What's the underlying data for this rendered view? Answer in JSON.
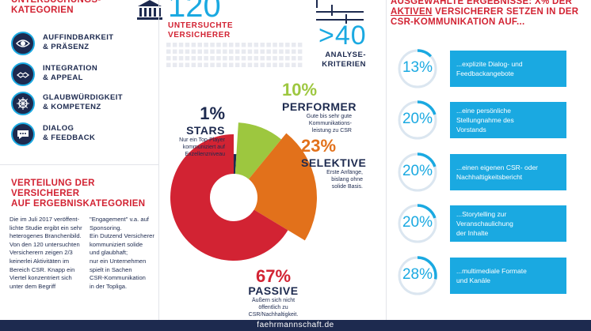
{
  "categories_title": "UNTERSUCHUNGS-\nKATEGORIEN",
  "categories": [
    {
      "icon": "eye-icon",
      "line1": "AUFFINDBARKEIT",
      "line2": "& PRÄSENZ"
    },
    {
      "icon": "handshake-icon",
      "line1": "INTEGRATION",
      "line2": "& APPEAL"
    },
    {
      "icon": "wheel-icon",
      "line1": "GLAUBWÜRDIGKEIT",
      "line2": "& KOMPETENZ"
    },
    {
      "icon": "speech-bubble-icon",
      "line1": "DIALOG",
      "line2": "& FEEDBACK"
    }
  ],
  "insurers": {
    "number": "120",
    "label_line1": "UNTERSUCHTE",
    "label_line2": "VERSICHERER"
  },
  "criteria": {
    "number": ">40",
    "label_line1": "ANALYSE-",
    "label_line2": "KRITERIEN"
  },
  "distribution_title_line1": "VERTEILUNG DER VERSICHERER",
  "distribution_title_line2": "AUF ERGEBNISKATEGORIEN",
  "body_col1": [
    "Die im Juli 2017 veröffent-",
    "lichte Studie ergibt ein sehr",
    "heterogenes Branchenbild.",
    "Von den 120 untersuchten",
    "Versicherern zeigen 2/3",
    "keinerlei Aktivitäten im",
    "Bereich CSR. Knapp ein",
    "Viertel konzentriert sich",
    "unter dem Begriff"
  ],
  "body_col2": [
    "\"Engagement\" v.a. auf",
    "Sponsoring.",
    "Ein Dutzend  Versicherer",
    "kommuniziert solide",
    "und glaubhaft;",
    "nur ein Unternehmen",
    "spielt in Sachen",
    "CSR-Kommunikation",
    "in der Topliga."
  ],
  "chart_data": {
    "type": "pie",
    "title": "",
    "categories": [
      "STARS",
      "PERFORMER",
      "SELEKTIVE",
      "PASSIVE"
    ],
    "values": [
      1,
      10,
      23,
      67
    ],
    "unit": "%",
    "colors": [
      "#1d2a4f",
      "#9dc73f",
      "#e2711b",
      "#d22333"
    ],
    "descriptions": [
      [
        "Nur ein Top-Player",
        "kommuniziert auf",
        "Exzellenzniveau"
      ],
      [
        "Gute bis sehr gute",
        "Kommunikations-",
        "leistung zu CSR"
      ],
      [
        "Erste Anfänge,",
        "bislang ohne",
        "solide Basis."
      ],
      [
        "Äußern sich nicht",
        "öffentlich zu",
        "CSR/Nachhaltigkeit."
      ]
    ]
  },
  "results_title_line1": "AUSGEWÄHLTE ERGEBNISSE: X% DER",
  "results_title_pre": "",
  "results_title_highlight": "AKTIVEN",
  "results_title_line2_rest": " VERSICHERER SETZEN IN DER",
  "results_title_line3": "CSR-KOMMUNIKATION AUF...",
  "results": [
    {
      "value": 13,
      "label": "13%",
      "text_line1": "...explizite Dialog- und",
      "text_line2": "Feedbackangebote",
      "text_line3": ""
    },
    {
      "value": 20,
      "label": "20%",
      "text_line1": "...eine persönliche",
      "text_line2": "Stellungnahme des",
      "text_line3": "Vorstands"
    },
    {
      "value": 20,
      "label": "20%",
      "text_line1": "...einen eigenen CSR- oder",
      "text_line2": "Nachhaltigkeitsbericht",
      "text_line3": ""
    },
    {
      "value": 20,
      "label": "20%",
      "text_line1": "...Storytelling zur",
      "text_line2": "Veranschaulichung",
      "text_line3": "der Inhalte"
    },
    {
      "value": 28,
      "label": "28%",
      "text_line1": "...multimediale Formate",
      "text_line2": "und Kanäle",
      "text_line3": ""
    }
  ],
  "footer": "faehrmannschaft.de",
  "colors": {
    "navy": "#1d2a4f",
    "cyan": "#1aa9e1",
    "red": "#d22333",
    "green": "#9dc73f",
    "orange": "#e2711b"
  }
}
